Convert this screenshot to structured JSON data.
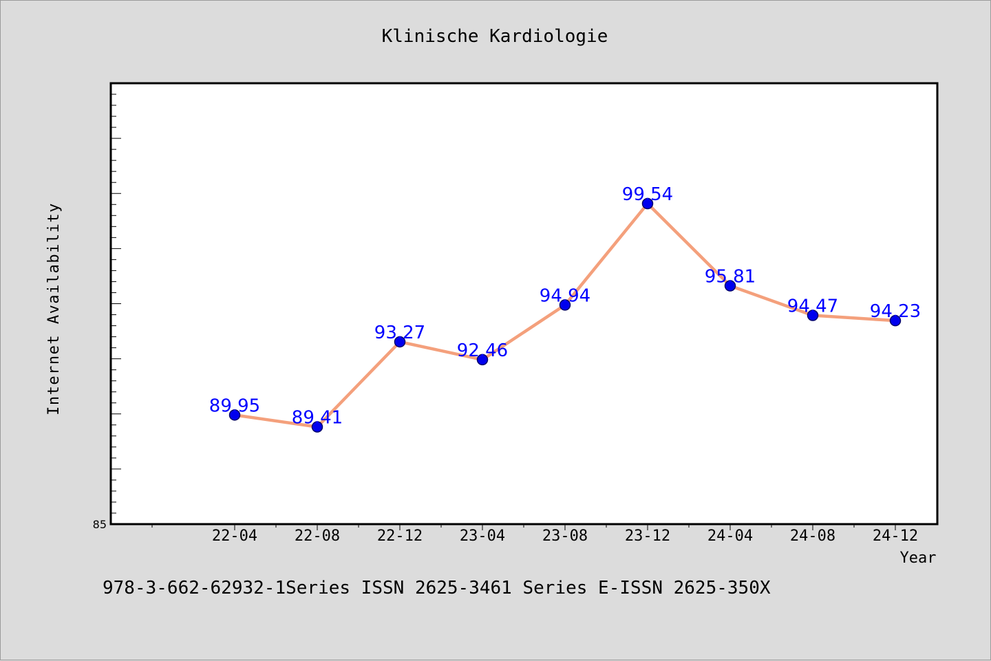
{
  "chart_data": {
    "type": "line",
    "title": "Klinische Kardiologie",
    "xlabel": "Year",
    "ylabel": "Internet Availability",
    "categories": [
      "22-04",
      "22-08",
      "22-12",
      "23-04",
      "23-08",
      "23-12",
      "24-04",
      "24-08",
      "24-12"
    ],
    "series": [
      {
        "values": [
          89.95,
          89.41,
          93.27,
          92.46,
          94.94,
          99.54,
          95.81,
          94.47,
          94.23
        ],
        "labels": [
          "89.95",
          "89.41",
          "93.27",
          "92.46",
          "94.94",
          "99.54",
          "95.81",
          "94.47",
          "94.23"
        ]
      }
    ],
    "ylim": [
      85,
      105
    ],
    "y_tick_labels": [
      "85"
    ],
    "grid": false,
    "line_color": "#f4a07c",
    "marker_color": "#0000ee",
    "label_color": "#0000ff"
  },
  "footer": {
    "text": "978-3-662-62932-1Series ISSN 2625-3461 Series E-ISSN 2625-350X"
  }
}
